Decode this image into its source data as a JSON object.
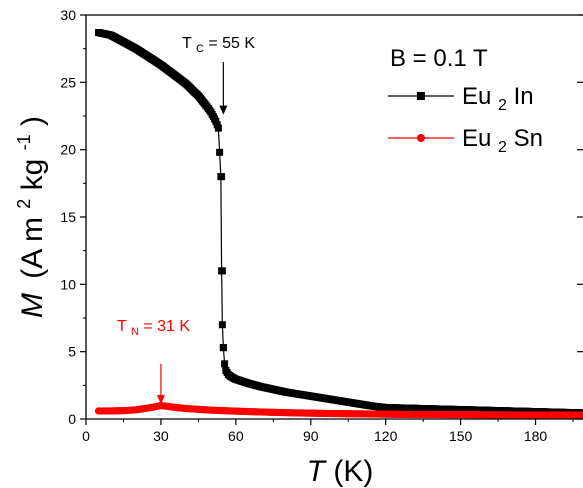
{
  "chart_data": {
    "type": "line",
    "xlabel": {
      "symbol": "T",
      "unit": "(K)"
    },
    "ylabel": {
      "symbol": "M",
      "unit_pre": "(A m",
      "sup1": "2",
      "unit_mid": " kg",
      "sup2": "-1",
      "unit_post": ")"
    },
    "xlim": [
      0,
      199
    ],
    "ylim": [
      0,
      30
    ],
    "x_ticks": [
      0,
      30,
      60,
      90,
      120,
      150,
      180
    ],
    "y_ticks": [
      0,
      5,
      10,
      15,
      20,
      25,
      30
    ],
    "legend": {
      "title": "B = 0.1 T",
      "placement": "top-right",
      "entries": [
        {
          "base": "Eu",
          "sub": "2",
          "rest": "In"
        },
        {
          "base": "Eu",
          "sub": "2",
          "rest": "Sn"
        }
      ]
    },
    "series": [
      {
        "name": "Eu2In",
        "color": "#000000",
        "marker": "square",
        "x": [
          5,
          10,
          15,
          20,
          25,
          30,
          35,
          40,
          45,
          48,
          50,
          52,
          53,
          54,
          54.3,
          54.6,
          55,
          55.5,
          56,
          57,
          58,
          60,
          65,
          70,
          75,
          80,
          85,
          90,
          95,
          100,
          105,
          110,
          115,
          120,
          130,
          140,
          150,
          160,
          170,
          180,
          190,
          199
        ],
        "y": [
          28.7,
          28.5,
          28.0,
          27.5,
          26.9,
          26.3,
          25.6,
          24.9,
          24.0,
          23.3,
          22.8,
          22.1,
          21.6,
          18.0,
          11.0,
          7.0,
          5.3,
          4.1,
          3.6,
          3.3,
          3.15,
          2.95,
          2.65,
          2.4,
          2.2,
          2.0,
          1.85,
          1.7,
          1.55,
          1.4,
          1.25,
          1.1,
          0.95,
          0.85,
          0.8,
          0.75,
          0.7,
          0.65,
          0.6,
          0.55,
          0.5,
          0.45
        ]
      },
      {
        "name": "Eu2Sn",
        "color": "#ff0000",
        "marker": "circle",
        "x": [
          5,
          10,
          15,
          20,
          25,
          28,
          30,
          33,
          36,
          40,
          45,
          50,
          60,
          70,
          80,
          90,
          100,
          110,
          120,
          130,
          140,
          150,
          160,
          170,
          180,
          190,
          199
        ],
        "y": [
          0.6,
          0.6,
          0.62,
          0.68,
          0.82,
          0.92,
          1.0,
          0.93,
          0.85,
          0.78,
          0.72,
          0.66,
          0.58,
          0.52,
          0.47,
          0.43,
          0.4,
          0.38,
          0.36,
          0.34,
          0.33,
          0.32,
          0.31,
          0.3,
          0.3,
          0.3,
          0.3
        ]
      }
    ],
    "annotations": [
      {
        "base": "T",
        "sub": "C",
        "rest": " = 55 K",
        "color": "#000000",
        "target_x": 55,
        "target_y": 22.6,
        "arrow_top_y": 26.5
      },
      {
        "base": "T",
        "sub": "N",
        "rest": " = 31 K",
        "color": "#ff0000",
        "target_x": 30,
        "target_y": 1.1,
        "arrow_top_y": 4.1
      }
    ]
  }
}
